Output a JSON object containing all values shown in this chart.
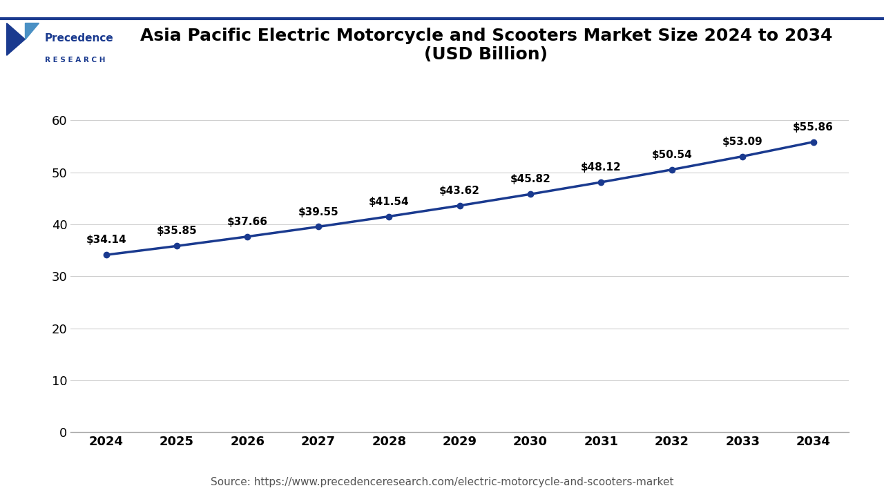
{
  "title_line1": "Asia Pacific Electric Motorcycle and Scooters Market Size 2024 to 2034",
  "title_line2": "(USD Billion)",
  "years": [
    2024,
    2025,
    2026,
    2027,
    2028,
    2029,
    2030,
    2031,
    2032,
    2033,
    2034
  ],
  "values": [
    34.14,
    35.85,
    37.66,
    39.55,
    41.54,
    43.62,
    45.82,
    48.12,
    50.54,
    53.09,
    55.86
  ],
  "labels": [
    "$34.14",
    "$35.85",
    "$37.66",
    "$39.55",
    "$41.54",
    "$43.62",
    "$45.82",
    "$48.12",
    "$50.54",
    "$53.09",
    "$55.86"
  ],
  "line_color": "#1a3a8f",
  "marker_color": "#1a3a8f",
  "background_color": "#ffffff",
  "plot_bg_color": "#ffffff",
  "grid_color": "#d0d0d0",
  "yticks": [
    0,
    10,
    20,
    30,
    40,
    50,
    60
  ],
  "ylim": [
    0,
    65
  ],
  "source_text": "Source: https://www.precedenceresearch.com/electric-motorcycle-and-scooters-market",
  "title_fontsize": 18,
  "label_fontsize": 11,
  "tick_fontsize": 13,
  "source_fontsize": 11,
  "header_line_color": "#1a3a8f",
  "title_color": "#000000",
  "tick_color": "#000000",
  "logo_primary_color": "#1a3a8f",
  "logo_accent_color": "#4a90c4"
}
